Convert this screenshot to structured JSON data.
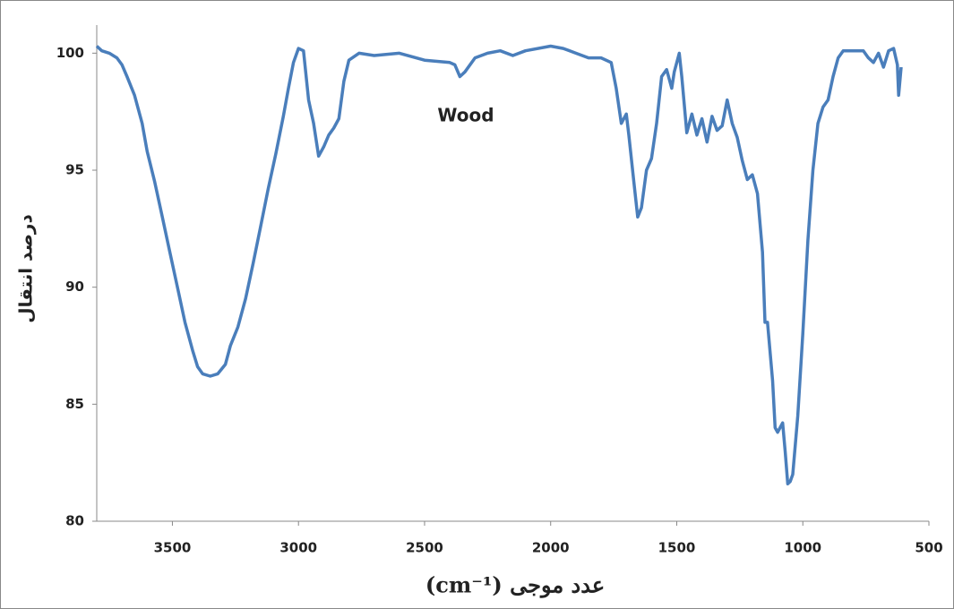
{
  "chart_data": {
    "type": "line",
    "xlabel": "عدد موجی (cm⁻¹)",
    "ylabel": "درصد انتقال",
    "annotation": "Wood",
    "xlim": [
      3800,
      500
    ],
    "ylim": [
      80,
      101.2
    ],
    "xticks": [
      3500,
      3000,
      2500,
      2000,
      1500,
      1000,
      500
    ],
    "yticks": [
      80,
      85,
      90,
      95,
      100
    ],
    "grid": false,
    "series": [
      {
        "name": "Wood",
        "color": "#4a7ebb",
        "x": [
          3800,
          3780,
          3750,
          3720,
          3700,
          3680,
          3650,
          3620,
          3600,
          3570,
          3540,
          3510,
          3480,
          3450,
          3420,
          3400,
          3380,
          3350,
          3320,
          3290,
          3270,
          3240,
          3210,
          3180,
          3150,
          3120,
          3090,
          3060,
          3040,
          3020,
          3000,
          2980,
          2960,
          2940,
          2920,
          2900,
          2880,
          2860,
          2840,
          2820,
          2800,
          2760,
          2700,
          2600,
          2500,
          2400,
          2380,
          2360,
          2340,
          2300,
          2250,
          2200,
          2150,
          2100,
          2000,
          1950,
          1900,
          1850,
          1800,
          1760,
          1740,
          1720,
          1700,
          1690,
          1670,
          1655,
          1640,
          1620,
          1600,
          1580,
          1560,
          1540,
          1520,
          1510,
          1490,
          1480,
          1460,
          1440,
          1420,
          1400,
          1380,
          1360,
          1340,
          1320,
          1300,
          1280,
          1260,
          1240,
          1220,
          1200,
          1180,
          1160,
          1150,
          1140,
          1120,
          1110,
          1100,
          1080,
          1070,
          1060,
          1050,
          1040,
          1020,
          1000,
          980,
          960,
          940,
          920,
          900,
          880,
          860,
          840,
          800,
          760,
          740,
          720,
          700,
          680,
          660,
          640,
          625,
          620,
          610
        ],
        "values": [
          100.3,
          100.1,
          100.0,
          99.8,
          99.5,
          99.0,
          98.2,
          97.0,
          95.8,
          94.5,
          93.0,
          91.5,
          90.0,
          88.5,
          87.3,
          86.6,
          86.3,
          86.2,
          86.3,
          86.7,
          87.5,
          88.3,
          89.5,
          91.0,
          92.6,
          94.2,
          95.7,
          97.3,
          98.5,
          99.6,
          100.2,
          100.1,
          98.0,
          97.0,
          95.6,
          96.0,
          96.5,
          96.8,
          97.2,
          98.8,
          99.7,
          100.0,
          99.9,
          100.0,
          99.7,
          99.6,
          99.5,
          99.0,
          99.2,
          99.8,
          100.0,
          100.1,
          99.9,
          100.1,
          100.3,
          100.2,
          100.0,
          99.8,
          99.8,
          99.6,
          98.5,
          97.0,
          97.4,
          96.5,
          94.5,
          93.0,
          93.4,
          95.0,
          95.5,
          97.0,
          99.0,
          99.3,
          98.5,
          99.2,
          100.0,
          99.0,
          96.6,
          97.4,
          96.5,
          97.2,
          96.2,
          97.3,
          96.7,
          96.9,
          98.0,
          97.0,
          96.4,
          95.4,
          94.6,
          94.8,
          94.0,
          91.5,
          88.5,
          88.5,
          86.0,
          84.0,
          83.8,
          84.2,
          83.0,
          81.6,
          81.7,
          82.0,
          84.5,
          88.0,
          92.0,
          95.0,
          97.0,
          97.7,
          98.0,
          99.0,
          99.8,
          100.1,
          100.1,
          100.1,
          99.8,
          99.6,
          100.0,
          99.4,
          100.1,
          100.2,
          99.5,
          98.2,
          99.4
        ]
      }
    ]
  }
}
